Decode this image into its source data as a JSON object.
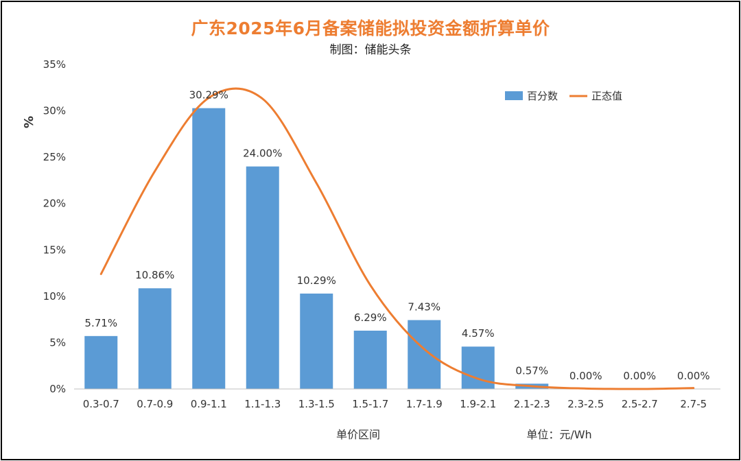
{
  "chart_data": {
    "type": "bar",
    "title": "广东2025年6月备案储能拟投资金额折算单价",
    "subtitle": "制图：储能头条",
    "xlabel": "单价区间",
    "ylabel": "%",
    "unit_note": "单位：元/Wh",
    "categories": [
      "0.3-0.7",
      "0.7-0.9",
      "0.9-1.1",
      "1.1-1.3",
      "1.3-1.5",
      "1.5-1.7",
      "1.7-1.9",
      "1.9-2.1",
      "2.1-2.3",
      "2.3-2.5",
      "2.5-2.7",
      "2.7-5"
    ],
    "series": [
      {
        "name": "百分数",
        "type": "bar",
        "color": "#5B9BD5",
        "values": [
          5.71,
          10.86,
          30.29,
          24.0,
          10.29,
          6.29,
          7.43,
          4.57,
          0.57,
          0.0,
          0.0,
          0.0
        ],
        "labels": [
          "5.71%",
          "10.86%",
          "30.29%",
          "24.00%",
          "10.29%",
          "6.29%",
          "7.43%",
          "4.57%",
          "0.57%",
          "0.00%",
          "0.00%",
          "0.00%"
        ]
      },
      {
        "name": "正态值",
        "type": "line",
        "color": "#ED7D31",
        "values": [
          12.4,
          23.5,
          31.4,
          31.3,
          22.2,
          11.2,
          4.3,
          1.1,
          0.3,
          0.05,
          0.0,
          0.1
        ]
      }
    ],
    "ylim": [
      0,
      35
    ],
    "yticks": [
      0,
      5,
      10,
      15,
      20,
      25,
      30,
      35
    ],
    "ytick_labels": [
      "0%",
      "5%",
      "10%",
      "15%",
      "20%",
      "25%",
      "30%",
      "35%"
    ],
    "grid": false,
    "legend_position": "top-right"
  }
}
